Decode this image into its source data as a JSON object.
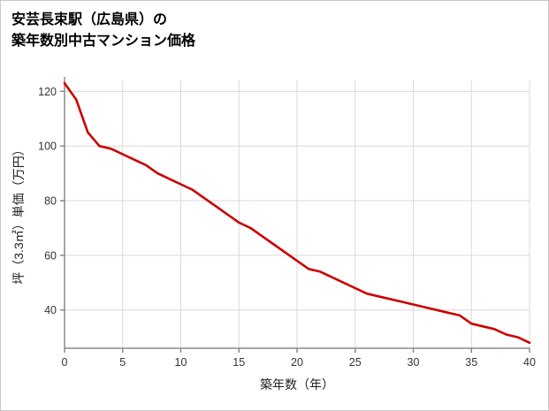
{
  "title": {
    "line1": "安芸長束駅（広島県）の",
    "line2": "築年数別中古マンション価格"
  },
  "chart_data": {
    "type": "line",
    "title": "安芸長束駅（広島県）の築年数別中古マンション価格",
    "xlabel": "築年数（年）",
    "ylabel": "坪（3.3㎡）単価（万円）",
    "x": [
      0,
      1,
      2,
      3,
      4,
      5,
      6,
      7,
      8,
      9,
      10,
      11,
      12,
      13,
      14,
      15,
      16,
      17,
      18,
      19,
      20,
      21,
      22,
      23,
      24,
      25,
      26,
      27,
      28,
      29,
      30,
      31,
      32,
      33,
      34,
      35,
      36,
      37,
      38,
      39,
      40
    ],
    "values": [
      123,
      117,
      105,
      100,
      99,
      97,
      95,
      93,
      90,
      88,
      86,
      84,
      81,
      78,
      75,
      72,
      70,
      67,
      64,
      61,
      58,
      55,
      54,
      52,
      50,
      48,
      46,
      45,
      44,
      43,
      42,
      41,
      40,
      39,
      38,
      35,
      34,
      33,
      31,
      30,
      28
    ],
    "series_name": "坪単価（万円）",
    "xlim": [
      0,
      40
    ],
    "ylim": [
      26,
      124
    ],
    "x_ticks": [
      0,
      5,
      10,
      15,
      20,
      25,
      30,
      35,
      40
    ],
    "y_ticks": [
      40,
      60,
      80,
      100,
      120
    ],
    "grid": true,
    "legend": "none",
    "line_color": "#cc0000",
    "grid_color": "#d9d9d9",
    "axis_color": "#8a8a8a",
    "tick_label_color": "#333333"
  }
}
